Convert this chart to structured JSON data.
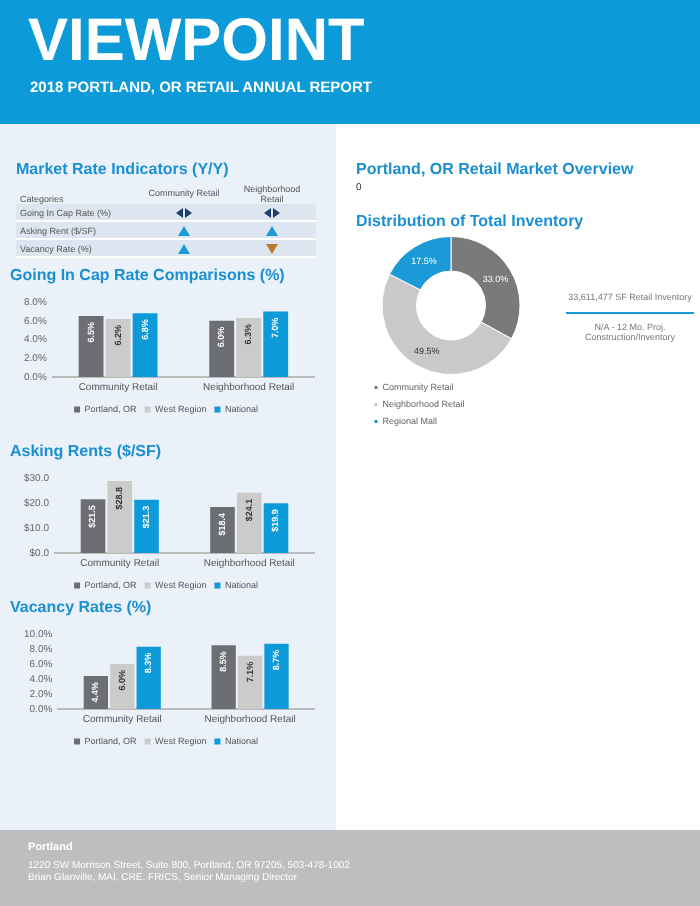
{
  "chart_data": [
    {
      "type": "other",
      "title": "VIEWPOINT",
      "subtitle": "2018 PORTLAND, OR RETAIL ANNUAL REPORT"
    },
    {
      "type": "other",
      "title": "Market Rate Indicators (Y/Y)",
      "categories": [
        "Community Retail",
        "Neighborhood Retail"
      ],
      "y_categories": [
        "Going In Cap Rate (%)",
        "Asking Rent ($/SF)",
        "Vacancy Rate (%)"
      ],
      "annotations": [
        "Categories"
      ]
    },
    {
      "type": "bar",
      "title": "Going In Cap Rate Comparisons (%)",
      "categories": [
        "Community Retail",
        "Neighborhood Retail"
      ],
      "series": [
        {
          "name": "Portland, OR",
          "color": "#6d6e71",
          "values": [
            6.5,
            6.0
          ],
          "value_labels": [
            "6.5%",
            "6.0%"
          ]
        },
        {
          "name": "West Region",
          "color": "#cbcbcb",
          "values": [
            6.2,
            6.3
          ],
          "value_labels": [
            "6.2%",
            "6.3%"
          ]
        },
        {
          "name": "National",
          "color": "#0c9ad8",
          "values": [
            6.8,
            7.0
          ],
          "value_labels": [
            "6.8%",
            "7.0%"
          ]
        }
      ],
      "ylim": [
        0,
        8
      ],
      "yticks": [
        {
          "value": 0,
          "label": "0.0%"
        },
        {
          "value": 2,
          "label": "2.0%"
        },
        {
          "value": 4,
          "label": "4.0%"
        },
        {
          "value": 6,
          "label": "6.0%"
        },
        {
          "value": 8,
          "label": "8.0%"
        }
      ],
      "grid": false,
      "legend": "bottom"
    },
    {
      "type": "bar",
      "title": "Asking Rents ($/SF)",
      "categories": [
        "Community Retail",
        "Neighborhood Retail"
      ],
      "series": [
        {
          "name": "Portland, OR",
          "color": "#6d6e71",
          "values": [
            21.5,
            18.4
          ],
          "value_labels": [
            "$21.5",
            "$18.4"
          ]
        },
        {
          "name": "West Region",
          "color": "#cbcbcb",
          "values": [
            28.8,
            24.1
          ],
          "value_labels": [
            "$28.8",
            "$24.1"
          ]
        },
        {
          "name": "National",
          "color": "#0c9ad8",
          "values": [
            21.3,
            19.9
          ],
          "value_labels": [
            "$21.3",
            "$19.9"
          ]
        }
      ],
      "ylim": [
        0,
        30
      ],
      "yticks": [
        {
          "value": 0,
          "label": "$0.0"
        },
        {
          "value": 10,
          "label": "$10.0"
        },
        {
          "value": 20,
          "label": "$20.0"
        },
        {
          "value": 30,
          "label": "$30.0"
        }
      ],
      "grid": false,
      "legend": "bottom"
    },
    {
      "type": "bar",
      "title": "Vacancy Rates (%)",
      "categories": [
        "Community Retail",
        "Neighborhood Retail"
      ],
      "series": [
        {
          "name": "Portland, OR",
          "color": "#6d6e71",
          "values": [
            4.4,
            8.5
          ],
          "value_labels": [
            "4.4%",
            "8.5%"
          ]
        },
        {
          "name": "West Region",
          "color": "#cbcbcb",
          "values": [
            6.0,
            7.1
          ],
          "value_labels": [
            "6.0%",
            "7.1%"
          ]
        },
        {
          "name": "National",
          "color": "#0c9ad8",
          "values": [
            8.3,
            8.7
          ],
          "value_labels": [
            "8.3%",
            "8.7%"
          ]
        }
      ],
      "ylim": [
        0,
        10
      ],
      "yticks": [
        {
          "value": 0,
          "label": "0.0%"
        },
        {
          "value": 2,
          "label": "2.0%"
        },
        {
          "value": 4,
          "label": "4.0%"
        },
        {
          "value": 6,
          "label": "6.0%"
        },
        {
          "value": 8,
          "label": "8.0%"
        },
        {
          "value": 10,
          "label": "10.0%"
        }
      ],
      "grid": false,
      "legend": "bottom"
    },
    {
      "type": "other",
      "title": "Portland, OR Retail Market Overview",
      "annotations": [
        "0"
      ]
    },
    {
      "type": "donut",
      "title": "Distribution of Total Inventory",
      "categories": [
        "Community Retail",
        "Neighborhood Retail",
        "Regional Mall"
      ],
      "values": [
        33.0,
        49.5,
        17.5
      ],
      "colors": [
        "#7a7a7c",
        "#c9c9c9",
        "#1a9ad6"
      ],
      "value_labels": [
        "33.0%",
        "49.5%",
        "17.5%"
      ],
      "legend": "bottom left",
      "annotations": [
        "33,611,477 SF Retail Inventory",
        "N/A - 12 Mo. Proj. Construction/Inventory"
      ]
    },
    {
      "type": "other",
      "annotations": [
        "Portland",
        "1220 SW Morrison Street, Suite 800, Portland, OR 97205, 503-478-1002",
        "Brian Glanville, MAI, CRE, FRICS, Senior Managing Director"
      ]
    }
  ]
}
